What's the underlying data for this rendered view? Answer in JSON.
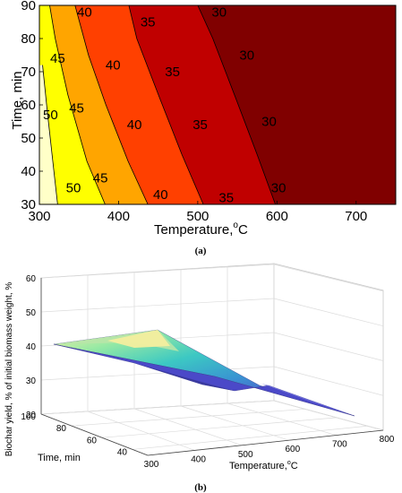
{
  "chart_data": [
    {
      "type": "contour",
      "xlabel": "Temperature,",
      "xlabel_unit": "oC",
      "ylabel": "Time, min",
      "xlim": [
        300,
        750
      ],
      "ylim": [
        30,
        90
      ],
      "x_ticks": [
        "300",
        "400",
        "500",
        "600",
        "700"
      ],
      "y_ticks": [
        "30",
        "40",
        "50",
        "60",
        "70",
        "80",
        "90"
      ],
      "levels": [
        30,
        35,
        40,
        45,
        50
      ],
      "level_lines": [
        {
          "level": 50,
          "points": [
            [
              323,
              30
            ],
            [
              316,
              45
            ],
            [
              310,
              58
            ],
            [
              304,
              72
            ]
          ]
        },
        {
          "level": 45,
          "points": [
            [
              383,
              30
            ],
            [
              360,
              43
            ],
            [
              336,
              63
            ],
            [
              320,
              80
            ],
            [
              313,
              90
            ]
          ]
        },
        {
          "level": 40,
          "points": [
            [
              437,
              30
            ],
            [
              412,
              43
            ],
            [
              384,
              60
            ],
            [
              362,
              75
            ],
            [
              345,
              90
            ]
          ]
        },
        {
          "level": 35,
          "points": [
            [
              507,
              30
            ],
            [
              480,
              45
            ],
            [
              452,
              62
            ],
            [
              423,
              80
            ],
            [
              413,
              90
            ]
          ]
        },
        {
          "level": 30,
          "points": [
            [
              598,
              30
            ],
            [
              575,
              45
            ],
            [
              548,
              62
            ],
            [
              519,
              80
            ],
            [
              500,
              90
            ]
          ]
        }
      ],
      "labels": [
        {
          "text": "40",
          "x": 357,
          "y": 88
        },
        {
          "text": "35",
          "x": 437,
          "y": 85
        },
        {
          "text": "30",
          "x": 527,
          "y": 88
        },
        {
          "text": "45",
          "x": 323,
          "y": 74
        },
        {
          "text": "40",
          "x": 393,
          "y": 72
        },
        {
          "text": "35",
          "x": 468,
          "y": 70
        },
        {
          "text": "30",
          "x": 562,
          "y": 75
        },
        {
          "text": "45",
          "x": 347,
          "y": 59
        },
        {
          "text": "50",
          "x": 314,
          "y": 57
        },
        {
          "text": "40",
          "x": 420,
          "y": 54
        },
        {
          "text": "35",
          "x": 503,
          "y": 54
        },
        {
          "text": "30",
          "x": 590,
          "y": 55
        },
        {
          "text": "45",
          "x": 377,
          "y": 38
        },
        {
          "text": "50",
          "x": 343,
          "y": 35
        },
        {
          "text": "40",
          "x": 453,
          "y": 33
        },
        {
          "text": "35",
          "x": 536,
          "y": 32
        },
        {
          "text": "30",
          "x": 602,
          "y": 35
        }
      ],
      "colors": {
        "region_gt50": "#ffffc8",
        "region_45_50": "#ffff00",
        "region_40_45": "#ffa500",
        "region_35_40": "#ff4000",
        "region_30_35": "#c00000",
        "region_lt30": "#800000"
      },
      "caption": "(a)"
    },
    {
      "type": "surface",
      "zlabel": "Biochar yield, % of initial biomass weight, %",
      "xlabel": "Temperature,",
      "xlabel_unit": "oC",
      "ylabel": "Time, min",
      "x_ticks": [
        "300",
        "400",
        "500",
        "600",
        "700",
        "800"
      ],
      "y_ticks": [
        "40",
        "60",
        "80",
        "100"
      ],
      "z_ticks": [
        "20",
        "30",
        "40",
        "50",
        "60"
      ],
      "xlim": [
        300,
        800
      ],
      "ylim": [
        30,
        100
      ],
      "zlim": [
        20,
        60
      ],
      "corners": {
        "t300_time30": 51,
        "t300_time90": 41,
        "t750_time30": 29,
        "t750_time90": 20
      },
      "colormap": [
        "#3b3a8c",
        "#4b49c8",
        "#2f8fd0",
        "#32c6c0",
        "#8fe8a0",
        "#f5f0a0"
      ],
      "caption": "(b)"
    }
  ]
}
